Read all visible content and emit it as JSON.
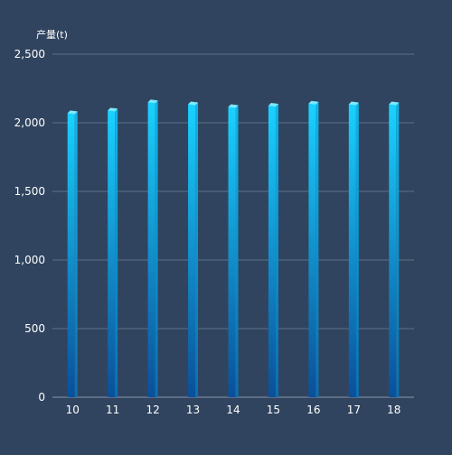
{
  "chart_data": {
    "type": "bar",
    "title": "",
    "ylabel": "产量(t)",
    "xlabel": "",
    "categories": [
      "10",
      "11",
      "12",
      "13",
      "14",
      "15",
      "16",
      "17",
      "18"
    ],
    "series": [
      {
        "values": [
          2070,
          2090,
          2150,
          2135,
          2115,
          2125,
          2140,
          2135,
          2135
        ]
      }
    ],
    "ylim": [
      0,
      2500
    ],
    "yticks": [
      "0",
      "500",
      "1,000",
      "1,500",
      "2,000",
      "2,500"
    ],
    "grid": true,
    "legend": "none",
    "colors": {
      "background": "#30445f",
      "grid": "#5c6f86",
      "axis": "#8796a8",
      "text": "#ffffff",
      "bar_top": "#1ad2ff",
      "bar_bottom": "#0a4f9a",
      "bar_cap": "#7ee8ff",
      "bar_side": "#0b6fb0"
    }
  }
}
